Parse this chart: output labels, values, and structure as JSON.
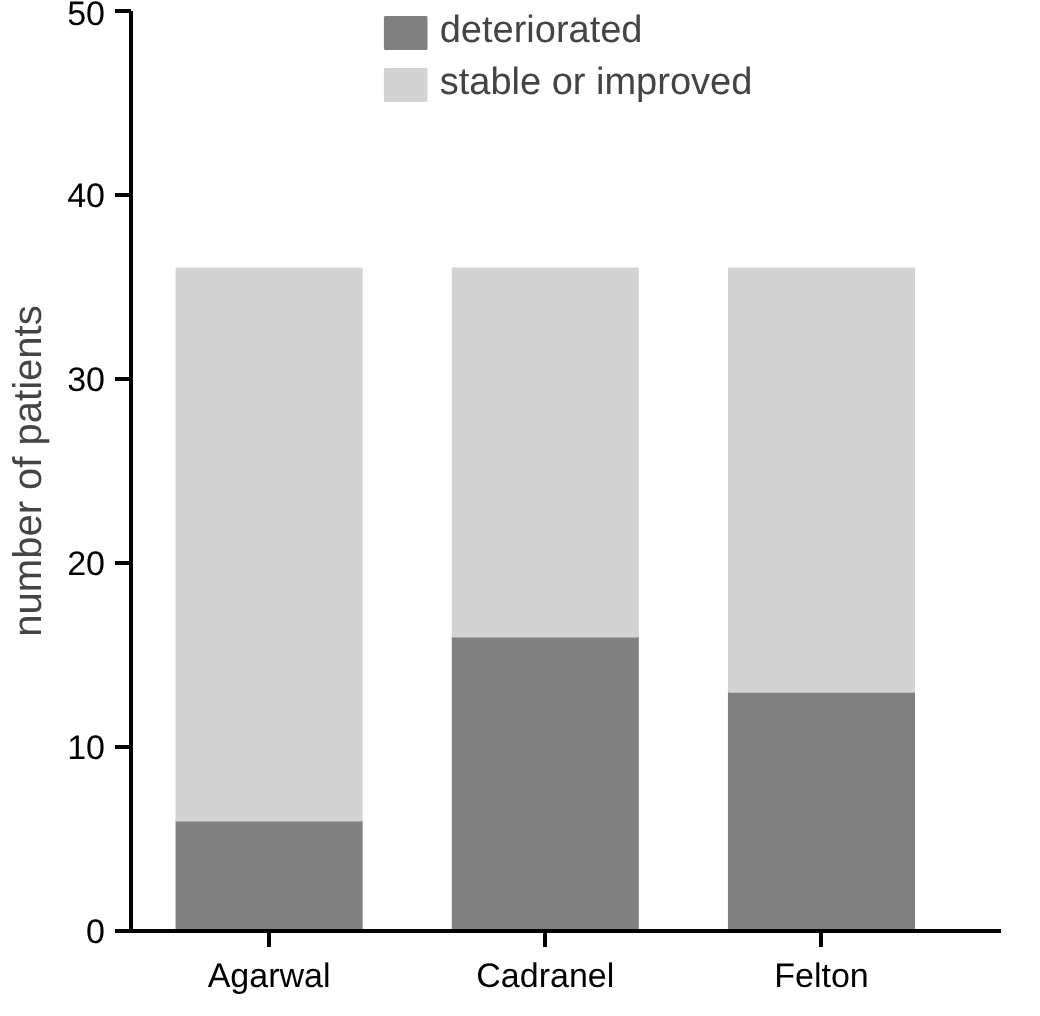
{
  "chart_data": {
    "type": "bar",
    "stacked": true,
    "ylabel": "number of patients",
    "categories": [
      "Agarwal",
      "Cadranel",
      "Felton"
    ],
    "series": [
      {
        "name": "deteriorated",
        "color": "#808080",
        "values": [
          6,
          16,
          13
        ]
      },
      {
        "name": "stable or improved",
        "color": "#d3d3d3",
        "values": [
          30,
          20,
          23
        ]
      }
    ],
    "ylim": [
      0,
      50
    ],
    "yticks": [
      0,
      10,
      20,
      30,
      40,
      50
    ],
    "grid": false,
    "legend": "top"
  }
}
